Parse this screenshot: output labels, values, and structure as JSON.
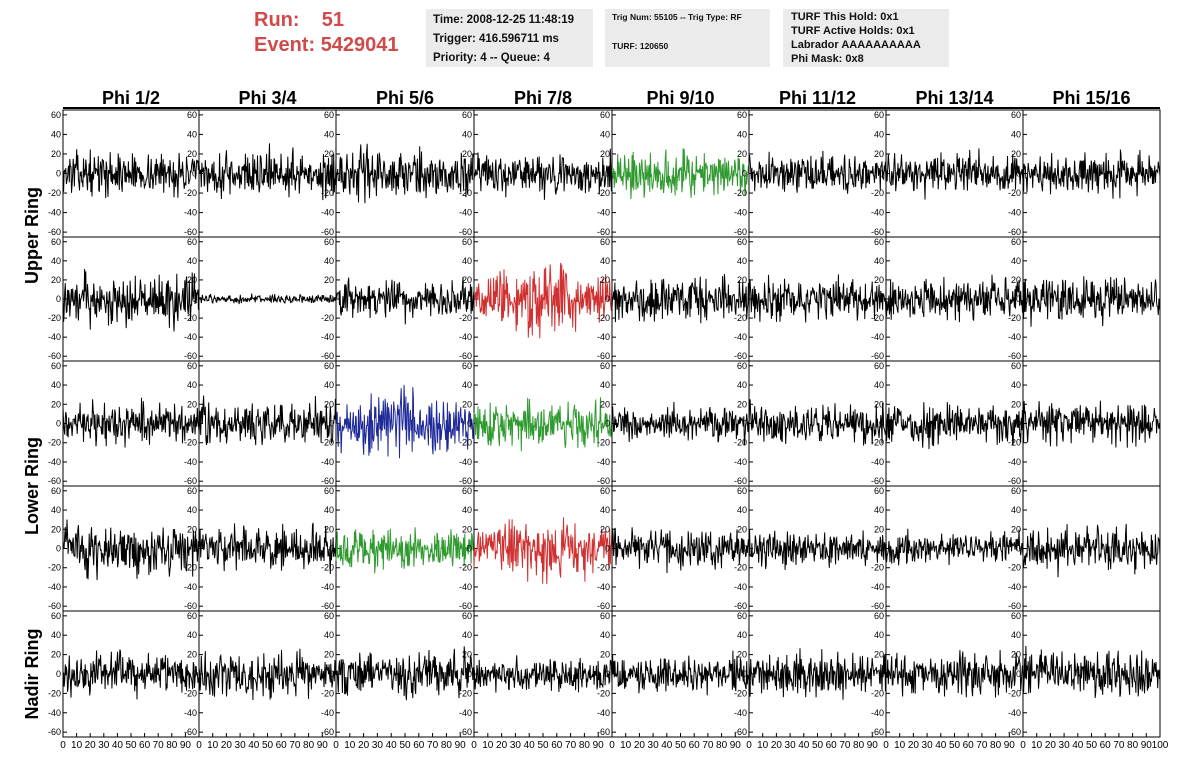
{
  "header": {
    "run_label": "Run:",
    "run_value": "51",
    "event_label": "Event:",
    "event_value": "5429041",
    "time": "Time: 2008-12-25 11:48:19",
    "trigger": "Trigger: 416.596711 ms",
    "priority": "Priority: 4 -- Queue: 4",
    "trig_line": "Trig Num: 55105 -- Trig Type: RF",
    "turf": "TURF: 120650",
    "turf_hold": "TURF This Hold: 0x1",
    "turf_active": "TURF Active Holds: 0x1",
    "labrador": "Labrador AAAAAAAAAA",
    "phi_mask": "Phi Mask: 0x8"
  },
  "columns": [
    "Phi 1/2",
    "Phi 3/4",
    "Phi 5/6",
    "Phi 7/8",
    "Phi 9/10",
    "Phi 11/12",
    "Phi 13/14",
    "Phi 15/16"
  ],
  "rings": [
    "Upper Ring",
    "Lower Ring",
    "Nadir Ring"
  ],
  "y_ticks": [
    "60",
    "40",
    "20",
    "0",
    "-20",
    "-40",
    "-60"
  ],
  "x_ticks": [
    "0",
    "10",
    "20",
    "30",
    "40",
    "50",
    "60",
    "70",
    "80",
    "90",
    "100"
  ],
  "chart_data": {
    "type": "line",
    "xlim": [
      0,
      100
    ],
    "ylim": [
      -65,
      65
    ],
    "grid": false,
    "panels": [
      {
        "row": 0,
        "col": 0,
        "color": "#000000",
        "amp": 14
      },
      {
        "row": 0,
        "col": 1,
        "color": "#000000",
        "amp": 16
      },
      {
        "row": 0,
        "col": 2,
        "color": "#000000",
        "amp": 17
      },
      {
        "row": 0,
        "col": 3,
        "color": "#000000",
        "amp": 14
      },
      {
        "row": 0,
        "col": 4,
        "color": "#2f9a2f",
        "amp": 16
      },
      {
        "row": 0,
        "col": 5,
        "color": "#000000",
        "amp": 13
      },
      {
        "row": 0,
        "col": 6,
        "color": "#000000",
        "amp": 14
      },
      {
        "row": 0,
        "col": 7,
        "color": "#000000",
        "amp": 14
      },
      {
        "row": 1,
        "col": 0,
        "color": "#000000",
        "amp": 18
      },
      {
        "row": 1,
        "col": 1,
        "color": "#000000",
        "amp": 3
      },
      {
        "row": 1,
        "col": 2,
        "color": "#000000",
        "amp": 14
      },
      {
        "row": 1,
        "col": 3,
        "color": "#d03030",
        "amp": 22
      },
      {
        "row": 1,
        "col": 4,
        "color": "#000000",
        "amp": 16
      },
      {
        "row": 1,
        "col": 5,
        "color": "#000000",
        "amp": 14
      },
      {
        "row": 1,
        "col": 6,
        "color": "#000000",
        "amp": 14
      },
      {
        "row": 1,
        "col": 7,
        "color": "#000000",
        "amp": 16
      },
      {
        "row": 2,
        "col": 0,
        "color": "#000000",
        "amp": 14
      },
      {
        "row": 2,
        "col": 1,
        "color": "#000000",
        "amp": 15
      },
      {
        "row": 2,
        "col": 2,
        "color": "#1f2a9a",
        "amp": 22
      },
      {
        "row": 2,
        "col": 3,
        "color": "#2f9a2f",
        "amp": 16
      },
      {
        "row": 2,
        "col": 4,
        "color": "#000000",
        "amp": 12
      },
      {
        "row": 2,
        "col": 5,
        "color": "#000000",
        "amp": 14
      },
      {
        "row": 2,
        "col": 6,
        "color": "#000000",
        "amp": 14
      },
      {
        "row": 2,
        "col": 7,
        "color": "#000000",
        "amp": 15
      },
      {
        "row": 3,
        "col": 0,
        "color": "#000000",
        "amp": 18
      },
      {
        "row": 3,
        "col": 1,
        "color": "#000000",
        "amp": 15
      },
      {
        "row": 3,
        "col": 2,
        "color": "#2f9a2f",
        "amp": 15
      },
      {
        "row": 3,
        "col": 3,
        "color": "#d03030",
        "amp": 20
      },
      {
        "row": 3,
        "col": 4,
        "color": "#000000",
        "amp": 14
      },
      {
        "row": 3,
        "col": 5,
        "color": "#000000",
        "amp": 13
      },
      {
        "row": 3,
        "col": 6,
        "color": "#000000",
        "amp": 11
      },
      {
        "row": 3,
        "col": 7,
        "color": "#000000",
        "amp": 15
      },
      {
        "row": 4,
        "col": 0,
        "color": "#000000",
        "amp": 14
      },
      {
        "row": 4,
        "col": 1,
        "color": "#000000",
        "amp": 16
      },
      {
        "row": 4,
        "col": 2,
        "color": "#000000",
        "amp": 16
      },
      {
        "row": 4,
        "col": 3,
        "color": "#000000",
        "amp": 12
      },
      {
        "row": 4,
        "col": 4,
        "color": "#000000",
        "amp": 13
      },
      {
        "row": 4,
        "col": 5,
        "color": "#000000",
        "amp": 15
      },
      {
        "row": 4,
        "col": 6,
        "color": "#000000",
        "amp": 14
      },
      {
        "row": 4,
        "col": 7,
        "color": "#000000",
        "amp": 15
      }
    ]
  }
}
